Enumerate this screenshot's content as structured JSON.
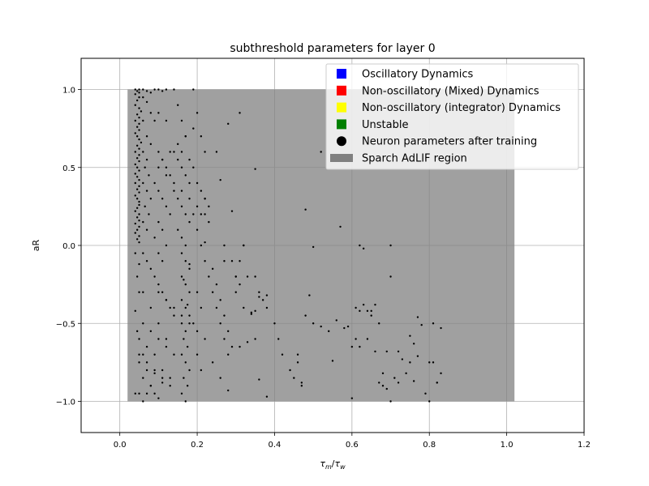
{
  "chart_data": {
    "type": "scatter",
    "title": "subthreshold parameters for layer 0",
    "xlabel_main": "τ",
    "xlabel_sub1": "m",
    "xlabel_sub2": "w",
    "ylabel": "aR",
    "xlim": [
      -0.1,
      1.2
    ],
    "ylim": [
      -1.2,
      1.2
    ],
    "xticks": [
      0.0,
      0.2,
      0.4,
      0.6,
      0.8,
      1.0,
      1.2
    ],
    "xtick_labels": [
      "0.0",
      "0.2",
      "0.4",
      "0.6",
      "0.8",
      "1.0",
      "1.2"
    ],
    "yticks": [
      -1.0,
      -0.5,
      0.0,
      0.5,
      1.0
    ],
    "ytick_labels": [
      "−1.0",
      "−0.5",
      "0.0",
      "0.5",
      "1.0"
    ],
    "grid": true,
    "legend_position": "top-right",
    "region": {
      "name": "Sparch AdLIF region",
      "x": [
        0.02,
        1.02
      ],
      "y": [
        -1.0,
        1.0
      ],
      "color": "#808080"
    },
    "legend": [
      {
        "label": "Oscillatory Dynamics",
        "color": "#0000ff",
        "marker": "square"
      },
      {
        "label": "Non-oscillatory (Mixed) Dynamics",
        "color": "#ff0000",
        "marker": "square"
      },
      {
        "label": "Non-oscillatory (integrator) Dynamics",
        "color": "#ffff00",
        "marker": "square"
      },
      {
        "label": "Unstable",
        "color": "#008000",
        "marker": "square"
      },
      {
        "label": "Neuron parameters after training",
        "color": "#000000",
        "marker": "circle"
      },
      {
        "label": "Sparch AdLIF region",
        "color": "#808080",
        "marker": "patch"
      }
    ],
    "series": [
      {
        "name": "Neuron parameters after training",
        "x": [
          0.04,
          0.05,
          0.045,
          0.05,
          0.04,
          0.05,
          0.045,
          0.04,
          0.05,
          0.055,
          0.045,
          0.05,
          0.04,
          0.05,
          0.045,
          0.05,
          0.04,
          0.045,
          0.05,
          0.055,
          0.045,
          0.05,
          0.04,
          0.05,
          0.045,
          0.05,
          0.04,
          0.045,
          0.05,
          0.04,
          0.045,
          0.05,
          0.04,
          0.05,
          0.045,
          0.05,
          0.04,
          0.045,
          0.05,
          0.05,
          0.045,
          0.04,
          0.05,
          0.045,
          0.05,
          0.04,
          0.05,
          0.045,
          0.04,
          0.05,
          0.045,
          0.05,
          0.04,
          0.05,
          0.045,
          0.05,
          0.04,
          0.045,
          0.05,
          0.04,
          0.06,
          0.07,
          0.08,
          0.06,
          0.07,
          0.08,
          0.06,
          0.07,
          0.08,
          0.06,
          0.07,
          0.065,
          0.075,
          0.06,
          0.07,
          0.08,
          0.065,
          0.075,
          0.06,
          0.07,
          0.09,
          0.1,
          0.11,
          0.12,
          0.09,
          0.1,
          0.11,
          0.12,
          0.13,
          0.09,
          0.1,
          0.11,
          0.12,
          0.13,
          0.1,
          0.11,
          0.09,
          0.12,
          0.1,
          0.11,
          0.14,
          0.15,
          0.16,
          0.17,
          0.14,
          0.15,
          0.16,
          0.17,
          0.18,
          0.14,
          0.15,
          0.16,
          0.17,
          0.18,
          0.15,
          0.16,
          0.17,
          0.16,
          0.17,
          0.18,
          0.16,
          0.17,
          0.18,
          0.16,
          0.17,
          0.18,
          0.16,
          0.17,
          0.165,
          0.175,
          0.16,
          0.17,
          0.18,
          0.165,
          0.175,
          0.16,
          0.17,
          0.18,
          0.165,
          0.175,
          0.19,
          0.2,
          0.21,
          0.22,
          0.19,
          0.2,
          0.21,
          0.22,
          0.23,
          0.19,
          0.2,
          0.21,
          0.22,
          0.23,
          0.2,
          0.21,
          0.19,
          0.22,
          0.2,
          0.21,
          0.24,
          0.25,
          0.26,
          0.27,
          0.28,
          0.24,
          0.25,
          0.26,
          0.27,
          0.28,
          0.29,
          0.3,
          0.31,
          0.32,
          0.33,
          0.24,
          0.26,
          0.28,
          0.3,
          0.32,
          0.06,
          0.07,
          0.08,
          0.09,
          0.1,
          0.11,
          0.12,
          0.13,
          0.14,
          0.06,
          0.08,
          0.1,
          0.12,
          0.14,
          0.07,
          0.09,
          0.11,
          0.13,
          0.05,
          0.06,
          0.06,
          0.08,
          0.1,
          0.12,
          0.07,
          0.09,
          0.11,
          0.13,
          0.05,
          0.06,
          0.07,
          0.08,
          0.09,
          0.1,
          0.11,
          0.05,
          0.06,
          0.07,
          0.08,
          0.09,
          0.1,
          0.12,
          0.14,
          0.16,
          0.18,
          0.2,
          0.22,
          0.11,
          0.13,
          0.15,
          0.17,
          0.19,
          0.21,
          0.23,
          0.1,
          0.12,
          0.14,
          0.16,
          0.18,
          0.2,
          0.35,
          0.36,
          0.37,
          0.38,
          0.34,
          0.35,
          0.36,
          0.38,
          0.34,
          0.33,
          0.31,
          0.29,
          0.27,
          0.3,
          0.32,
          0.35,
          0.36,
          0.38,
          0.4,
          0.41,
          0.42,
          0.44,
          0.45,
          0.46,
          0.47,
          0.48,
          0.49,
          0.5,
          0.46,
          0.47,
          0.5,
          0.52,
          0.54,
          0.55,
          0.56,
          0.58,
          0.59,
          0.6,
          0.62,
          0.63,
          0.61,
          0.62,
          0.63,
          0.64,
          0.65,
          0.66,
          0.67,
          0.68,
          0.69,
          0.7,
          0.72,
          0.74,
          0.75,
          0.76,
          0.77,
          0.78,
          0.8,
          0.81,
          0.82,
          0.83,
          0.6,
          0.61,
          0.64,
          0.65,
          0.66,
          0.67,
          0.68,
          0.69,
          0.7,
          0.71,
          0.72,
          0.73,
          0.75,
          0.77,
          0.79,
          0.8,
          0.81,
          0.82,
          0.83,
          0.76,
          0.1,
          0.12,
          0.16,
          0.18,
          0.22,
          0.25,
          0.28,
          0.31,
          0.22,
          0.26,
          0.29,
          0.35,
          0.48,
          0.52,
          0.55,
          0.57,
          0.62,
          0.7,
          0.31,
          0.27
        ],
        "y": [
          1.0,
          1.0,
          0.99,
          0.98,
          0.97,
          0.95,
          0.93,
          0.9,
          0.88,
          0.86,
          0.84,
          0.82,
          0.8,
          0.78,
          0.76,
          0.74,
          0.72,
          0.7,
          0.68,
          0.66,
          0.64,
          0.62,
          0.6,
          0.58,
          0.56,
          0.54,
          0.52,
          0.5,
          0.48,
          0.46,
          0.44,
          0.42,
          0.4,
          0.38,
          0.36,
          0.34,
          0.32,
          0.3,
          0.28,
          0.26,
          0.24,
          0.22,
          0.2,
          0.18,
          0.16,
          0.14,
          0.12,
          0.1,
          0.08,
          0.06,
          0.04,
          0.02,
          -0.05,
          -0.12,
          -0.2,
          -0.3,
          -0.42,
          -0.55,
          -0.7,
          -0.95,
          1.0,
          0.99,
          0.98,
          0.95,
          0.92,
          0.85,
          0.8,
          0.7,
          0.65,
          0.6,
          0.55,
          0.5,
          0.45,
          0.4,
          0.35,
          0.3,
          0.25,
          0.2,
          0.15,
          0.1,
          1.0,
          1.0,
          0.99,
          1.0,
          0.8,
          0.6,
          0.55,
          0.5,
          0.45,
          0.4,
          0.35,
          0.3,
          0.25,
          0.2,
          0.15,
          0.1,
          0.05,
          0.0,
          -0.05,
          -0.1,
          1.0,
          0.9,
          0.8,
          0.7,
          0.6,
          0.55,
          0.5,
          0.45,
          0.4,
          0.35,
          0.3,
          0.25,
          0.2,
          0.15,
          0.1,
          0.05,
          0.0,
          -0.05,
          -0.1,
          -0.15,
          -0.2,
          -0.25,
          -0.3,
          -0.35,
          -0.4,
          -0.45,
          -0.5,
          -0.55,
          -0.6,
          -0.65,
          -0.7,
          -0.75,
          -0.8,
          -0.85,
          -0.9,
          -0.95,
          -1.0,
          -0.12,
          -0.22,
          -0.38,
          1.0,
          0.85,
          0.7,
          0.6,
          0.5,
          0.4,
          0.35,
          0.3,
          0.25,
          0.2,
          0.1,
          0.0,
          -0.1,
          -0.2,
          -0.3,
          -0.4,
          -0.5,
          -0.6,
          -0.7,
          -0.8,
          -0.3,
          -0.4,
          -0.5,
          -0.6,
          -0.7,
          -0.15,
          -0.25,
          -0.35,
          -0.45,
          -0.55,
          -0.65,
          -0.2,
          -0.1,
          0.0,
          -0.2,
          -0.75,
          -0.85,
          -0.93,
          -0.3,
          0.0,
          -0.05,
          -0.1,
          -0.15,
          -0.2,
          -0.25,
          -0.3,
          -0.35,
          -0.4,
          -0.45,
          -0.5,
          -0.55,
          -0.6,
          -0.65,
          -0.7,
          -0.75,
          -0.8,
          -0.85,
          -0.9,
          -0.95,
          -1.0,
          -0.3,
          -0.4,
          -0.5,
          -0.6,
          -0.65,
          -0.7,
          -0.8,
          -0.85,
          -0.6,
          -0.7,
          -0.8,
          -0.9,
          -0.95,
          -0.98,
          -0.88,
          -0.75,
          -0.85,
          -0.95,
          -0.9,
          -0.82,
          0.5,
          0.45,
          0.4,
          0.35,
          0.3,
          0.25,
          0.2,
          0.55,
          0.6,
          0.65,
          0.7,
          0.75,
          0.2,
          0.15,
          -0.3,
          -0.35,
          -0.4,
          -0.45,
          -0.5,
          -0.55,
          -0.2,
          -0.3,
          -0.35,
          -0.4,
          -0.43,
          -0.42,
          -0.33,
          -0.32,
          -0.44,
          -0.62,
          -0.65,
          -0.1,
          0.0,
          -0.2,
          -0.4,
          -0.6,
          -0.86,
          -0.97,
          -0.5,
          -0.6,
          -0.7,
          -0.8,
          -0.85,
          -0.75,
          -0.9,
          -0.45,
          -0.32,
          -0.5,
          -0.7,
          -0.88,
          -0.01,
          -0.52,
          -0.55,
          -0.74,
          -0.48,
          -0.53,
          -0.52,
          -0.98,
          -0.42,
          -0.02,
          -0.6,
          -0.65,
          -0.38,
          -0.42,
          -0.45,
          -0.68,
          -0.5,
          -0.9,
          -0.92,
          -1.0,
          -0.68,
          -0.82,
          -0.58,
          -0.87,
          -0.46,
          -0.51,
          -1.0,
          -0.5,
          -0.88,
          -0.53,
          -0.65,
          -0.4,
          -0.6,
          -0.42,
          -0.38,
          -0.88,
          -0.82,
          -0.68,
          0.0,
          -0.85,
          -0.88,
          -0.73,
          -0.75,
          -0.71,
          -0.95,
          -0.75,
          -0.75,
          -0.88,
          -0.82,
          -0.63,
          0.85,
          0.8,
          0.6,
          0.55,
          0.3,
          0.6,
          0.78,
          0.85,
          0.02,
          0.42,
          0.22,
          0.49,
          0.23,
          0.6,
          0.55,
          0.12,
          0.0,
          -0.2,
          -0.25,
          -0.1
        ]
      }
    ]
  }
}
